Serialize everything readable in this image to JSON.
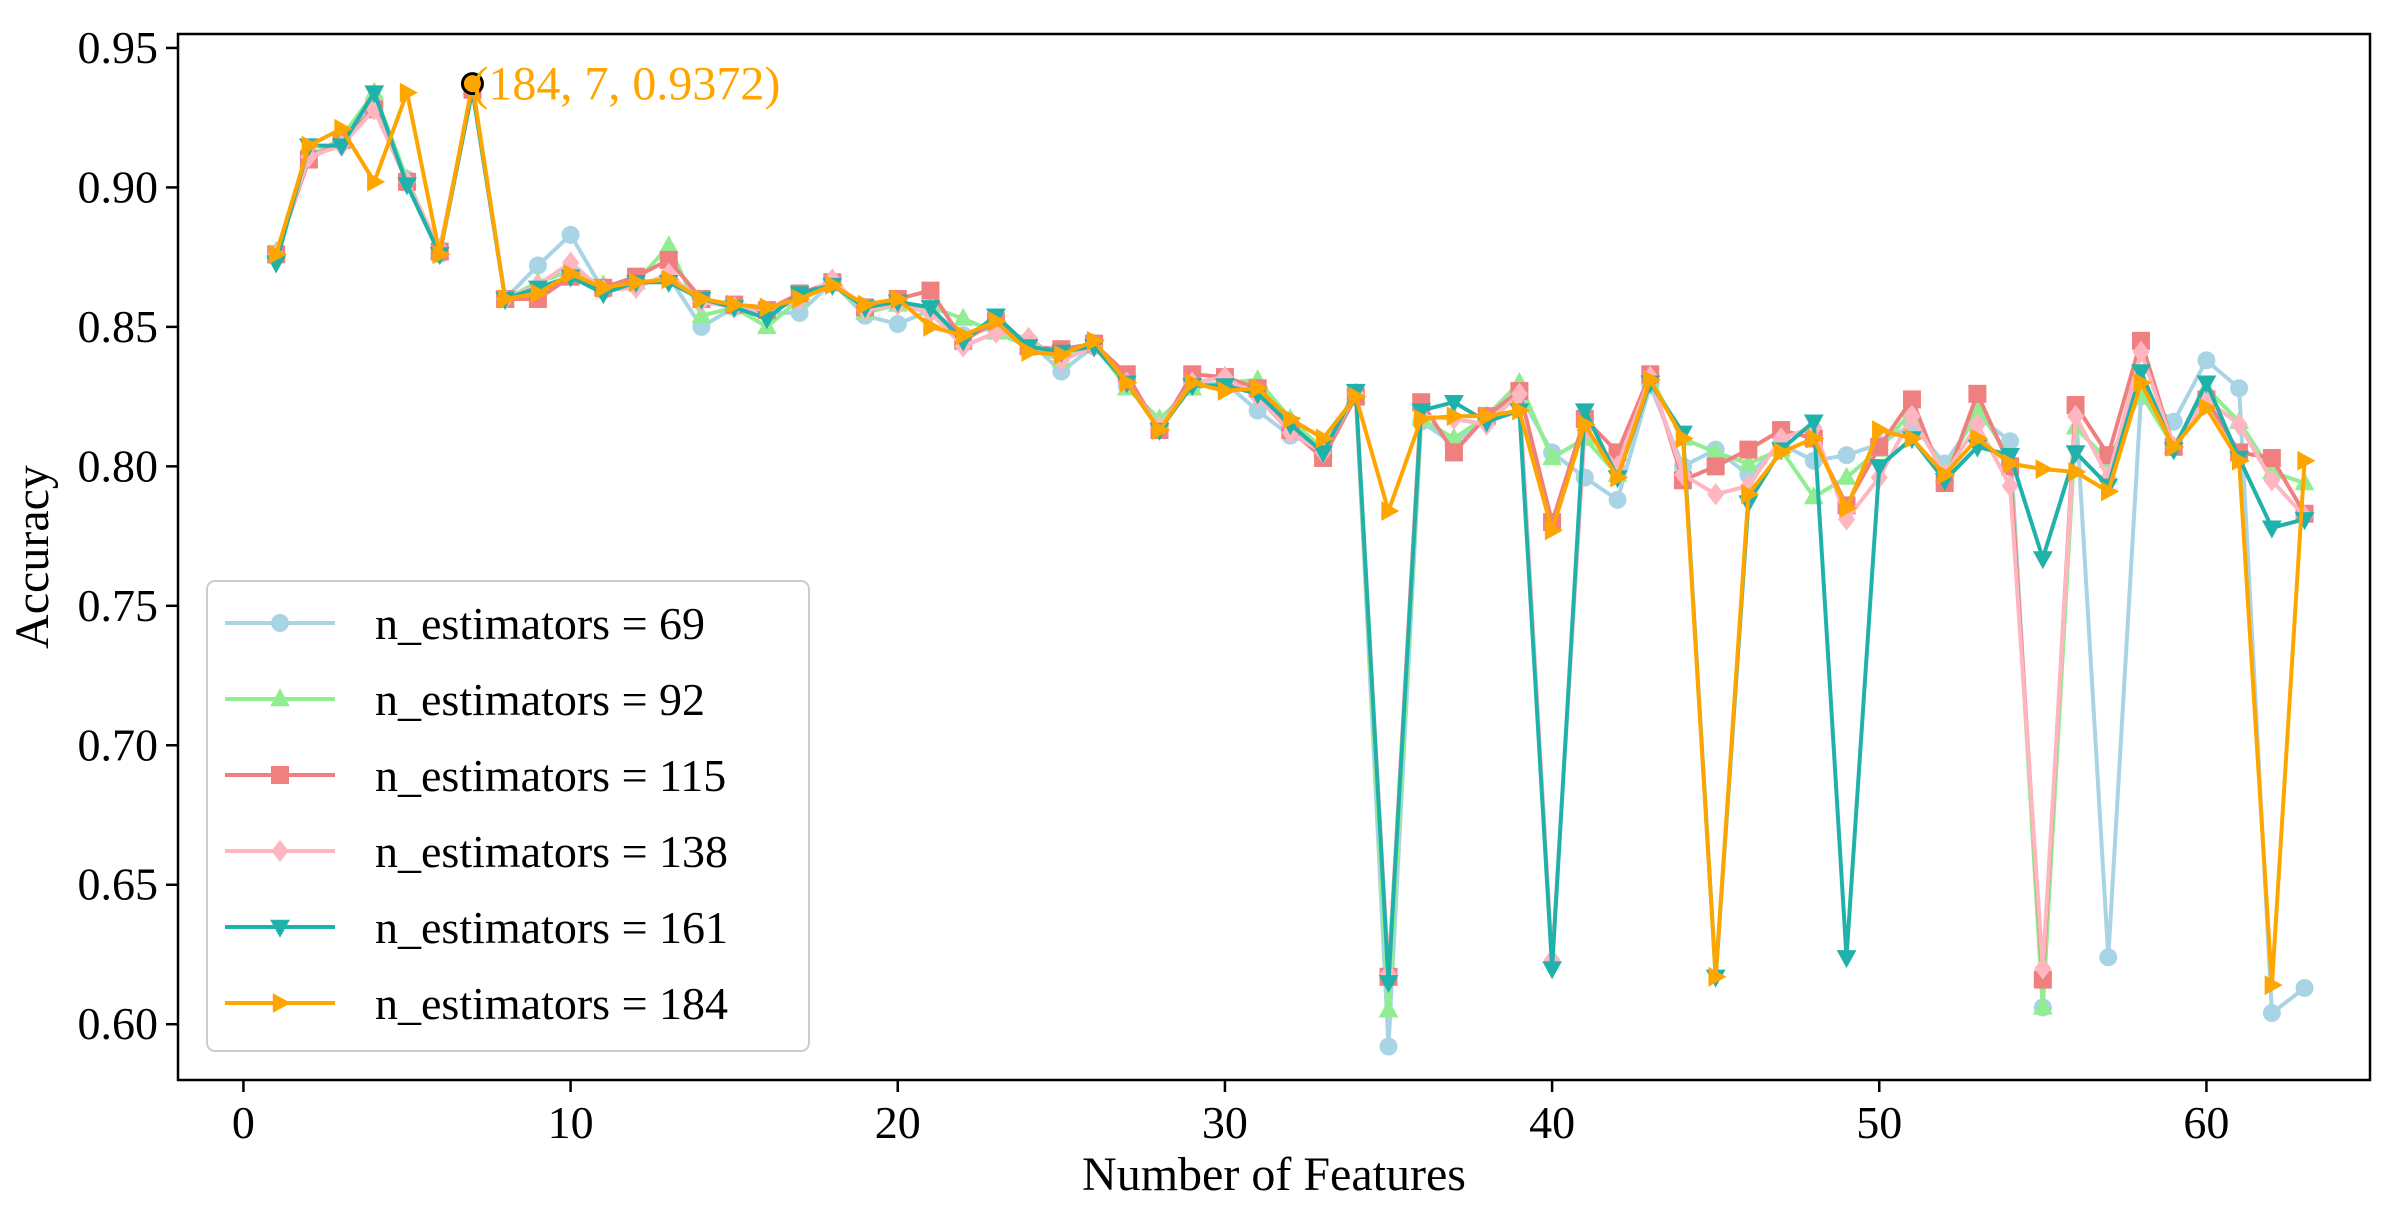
{
  "chart_data": {
    "type": "line",
    "title": "",
    "xlabel": "Number of Features",
    "ylabel": "Accuracy",
    "xlim": [
      -2,
      65
    ],
    "ylim": [
      0.58,
      0.955
    ],
    "xticks": [
      0,
      10,
      20,
      30,
      40,
      50,
      60
    ],
    "xtick_labels": [
      "0",
      "10",
      "20",
      "30",
      "40",
      "50",
      "60"
    ],
    "yticks": [
      0.6,
      0.65,
      0.7,
      0.75,
      0.8,
      0.85,
      0.9,
      0.95
    ],
    "ytick_labels": [
      "0.60",
      "0.65",
      "0.70",
      "0.75",
      "0.80",
      "0.85",
      "0.90",
      "0.95"
    ],
    "grid": false,
    "legend_position": "lower-left",
    "x": [
      1,
      2,
      3,
      4,
      5,
      6,
      7,
      8,
      9,
      10,
      11,
      12,
      13,
      14,
      15,
      16,
      17,
      18,
      19,
      20,
      21,
      22,
      23,
      24,
      25,
      26,
      27,
      28,
      29,
      30,
      31,
      32,
      33,
      34,
      35,
      36,
      37,
      38,
      39,
      40,
      41,
      42,
      43,
      44,
      45,
      46,
      47,
      48,
      49,
      50,
      51,
      52,
      53,
      54,
      55,
      56,
      57,
      58,
      59,
      60,
      61,
      62,
      63
    ],
    "series": [
      {
        "name": "n_estimators = 69",
        "color": "#a8d4e6",
        "marker": "circle",
        "values": [
          0.876,
          0.912,
          0.916,
          0.93,
          0.903,
          0.876,
          0.935,
          0.86,
          0.872,
          0.883,
          0.863,
          0.865,
          0.868,
          0.85,
          0.857,
          0.855,
          0.855,
          0.866,
          0.854,
          0.851,
          0.856,
          0.847,
          0.85,
          0.845,
          0.834,
          0.843,
          0.829,
          0.816,
          0.829,
          0.83,
          0.82,
          0.811,
          0.807,
          0.826,
          0.592,
          0.816,
          0.808,
          0.818,
          0.826,
          0.805,
          0.796,
          0.788,
          0.829,
          0.8,
          0.806,
          0.797,
          0.808,
          0.802,
          0.804,
          0.808,
          0.815,
          0.801,
          0.818,
          0.809,
          0.606,
          0.822,
          0.624,
          0.825,
          0.816,
          0.838,
          0.828,
          0.604,
          0.613
        ]
      },
      {
        "name": "n_estimators = 92",
        "color": "#90ee90",
        "marker": "triangle-up",
        "values": [
          0.877,
          0.91,
          0.918,
          0.934,
          0.903,
          0.877,
          0.936,
          0.86,
          0.866,
          0.87,
          0.865,
          0.866,
          0.879,
          0.854,
          0.857,
          0.85,
          0.86,
          0.866,
          0.855,
          0.858,
          0.857,
          0.853,
          0.848,
          0.843,
          0.838,
          0.844,
          0.828,
          0.817,
          0.828,
          0.83,
          0.831,
          0.817,
          0.806,
          0.825,
          0.605,
          0.817,
          0.81,
          0.818,
          0.83,
          0.803,
          0.81,
          0.797,
          0.832,
          0.81,
          0.805,
          0.801,
          0.806,
          0.789,
          0.796,
          0.806,
          0.82,
          0.797,
          0.821,
          0.803,
          0.606,
          0.814,
          0.802,
          0.826,
          0.807,
          0.828,
          0.816,
          0.798,
          0.794
        ]
      },
      {
        "name": "n_estimators = 115",
        "color": "#f08080",
        "marker": "square",
        "values": [
          0.876,
          0.91,
          0.917,
          0.928,
          0.902,
          0.877,
          0.935,
          0.86,
          0.86,
          0.868,
          0.864,
          0.868,
          0.874,
          0.86,
          0.858,
          0.856,
          0.862,
          0.866,
          0.857,
          0.86,
          0.863,
          0.845,
          0.852,
          0.843,
          0.842,
          0.844,
          0.833,
          0.813,
          0.833,
          0.832,
          0.828,
          0.813,
          0.803,
          0.825,
          0.617,
          0.823,
          0.805,
          0.818,
          0.827,
          0.78,
          0.817,
          0.805,
          0.833,
          0.795,
          0.8,
          0.806,
          0.813,
          0.81,
          0.786,
          0.807,
          0.824,
          0.794,
          0.826,
          0.8,
          0.616,
          0.822,
          0.804,
          0.845,
          0.807,
          0.824,
          0.805,
          0.803,
          0.783
        ]
      },
      {
        "name": "n_estimators = 138",
        "color": "#ffb6c1",
        "marker": "diamond",
        "values": [
          0.876,
          0.911,
          0.915,
          0.928,
          0.902,
          0.878,
          0.935,
          0.86,
          0.865,
          0.873,
          0.863,
          0.864,
          0.869,
          0.859,
          0.857,
          0.855,
          0.86,
          0.867,
          0.856,
          0.858,
          0.855,
          0.843,
          0.848,
          0.846,
          0.838,
          0.843,
          0.83,
          0.814,
          0.83,
          0.832,
          0.825,
          0.812,
          0.805,
          0.826,
          0.618,
          0.818,
          0.817,
          0.815,
          0.826,
          0.623,
          0.813,
          0.8,
          0.832,
          0.797,
          0.79,
          0.793,
          0.81,
          0.814,
          0.781,
          0.796,
          0.818,
          0.797,
          0.815,
          0.793,
          0.62,
          0.818,
          0.796,
          0.841,
          0.807,
          0.824,
          0.815,
          0.795,
          0.782
        ]
      },
      {
        "name": "n_estimators = 161",
        "color": "#20b2aa",
        "marker": "triangle-down",
        "values": [
          0.873,
          0.915,
          0.915,
          0.934,
          0.901,
          0.876,
          0.935,
          0.86,
          0.864,
          0.868,
          0.862,
          0.866,
          0.866,
          0.86,
          0.857,
          0.853,
          0.862,
          0.865,
          0.857,
          0.859,
          0.857,
          0.845,
          0.854,
          0.843,
          0.841,
          0.843,
          0.83,
          0.813,
          0.829,
          0.829,
          0.826,
          0.815,
          0.805,
          0.827,
          0.615,
          0.82,
          0.823,
          0.816,
          0.82,
          0.62,
          0.82,
          0.796,
          0.83,
          0.812,
          0.617,
          0.787,
          0.806,
          0.816,
          0.624,
          0.8,
          0.81,
          0.795,
          0.807,
          0.804,
          0.767,
          0.805,
          0.793,
          0.834,
          0.806,
          0.83,
          0.803,
          0.778,
          0.781
        ]
      },
      {
        "name": "n_estimators = 184",
        "color": "#ffa500",
        "marker": "triangle-right",
        "values": [
          0.876,
          0.915,
          0.921,
          0.902,
          0.934,
          0.876,
          0.937,
          0.86,
          0.862,
          0.869,
          0.864,
          0.866,
          0.867,
          0.86,
          0.858,
          0.857,
          0.86,
          0.865,
          0.858,
          0.86,
          0.85,
          0.847,
          0.852,
          0.841,
          0.84,
          0.845,
          0.83,
          0.813,
          0.83,
          0.827,
          0.828,
          0.817,
          0.81,
          0.825,
          0.784,
          0.817,
          0.818,
          0.818,
          0.82,
          0.777,
          0.815,
          0.796,
          0.831,
          0.81,
          0.617,
          0.79,
          0.805,
          0.81,
          0.785,
          0.813,
          0.81,
          0.797,
          0.81,
          0.801,
          0.799,
          0.798,
          0.791,
          0.83,
          0.807,
          0.821,
          0.802,
          0.614,
          0.802
        ]
      }
    ],
    "annotation": {
      "text": "(184, 7, 0.9372)",
      "x": 7,
      "y": 0.9372,
      "color": "#ffa500"
    }
  }
}
